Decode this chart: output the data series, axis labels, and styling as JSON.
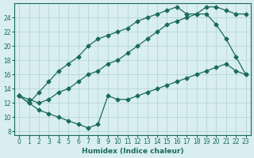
{
  "line1_x": [
    0,
    1,
    2,
    3,
    4,
    5,
    6,
    7,
    8,
    9,
    10,
    11,
    12,
    13,
    14,
    15,
    16,
    17,
    18,
    19,
    20,
    21,
    22,
    23
  ],
  "line1_y": [
    13.0,
    12.0,
    13.5,
    15.0,
    16.5,
    17.5,
    18.5,
    20.0,
    21.0,
    21.5,
    22.0,
    22.5,
    23.5,
    24.0,
    24.5,
    25.0,
    25.5,
    24.5,
    24.5,
    24.5,
    23.0,
    21.0,
    18.5,
    16.0
  ],
  "line2_x": [
    0,
    1,
    2,
    3,
    4,
    5,
    6,
    7,
    8,
    9,
    10,
    11,
    12,
    13,
    14,
    15,
    16,
    17,
    18,
    19,
    20,
    21,
    22,
    23
  ],
  "line2_y": [
    13.0,
    12.5,
    12.0,
    12.5,
    13.5,
    14.0,
    15.0,
    16.0,
    16.5,
    17.5,
    18.0,
    19.0,
    20.0,
    21.0,
    22.0,
    23.0,
    23.5,
    24.0,
    24.5,
    25.5,
    25.5,
    25.0,
    24.5,
    24.5
  ],
  "line3_x": [
    0,
    1,
    2,
    3,
    4,
    5,
    6,
    7,
    8,
    9,
    10,
    11,
    12,
    13,
    14,
    15,
    16,
    17,
    18,
    19,
    20,
    21,
    22,
    23
  ],
  "line3_y": [
    13.0,
    12.0,
    11.0,
    10.5,
    10.0,
    9.5,
    9.0,
    8.5,
    9.0,
    13.0,
    12.5,
    12.5,
    13.0,
    13.5,
    14.0,
    14.5,
    15.0,
    15.5,
    16.0,
    16.5,
    17.0,
    17.5,
    16.5,
    16.0
  ],
  "color": "#1a6b5a",
  "bg_color": "#d8eef0",
  "grid_color": "#b0d0d8",
  "xlabel": "Humidex (Indice chaleur)",
  "xlim": [
    -0.5,
    23.5
  ],
  "ylim": [
    7.5,
    26
  ],
  "yticks": [
    8,
    10,
    12,
    14,
    16,
    18,
    20,
    22,
    24
  ],
  "xticks": [
    0,
    1,
    2,
    3,
    4,
    5,
    6,
    7,
    8,
    9,
    10,
    11,
    12,
    13,
    14,
    15,
    16,
    17,
    18,
    19,
    20,
    21,
    22,
    23
  ]
}
